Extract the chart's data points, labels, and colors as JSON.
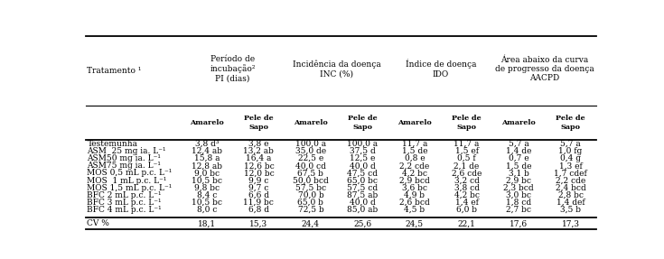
{
  "col_groups": [
    {
      "label": "Período de\nincubação²\nPI (dias)"
    },
    {
      "label": "Incidência da doença\nINC (%)"
    },
    {
      "label": "Índice de doença\nIDO"
    },
    {
      "label": "Área abaixo da curva\nde progresso da doença\nAACPD"
    }
  ],
  "col1_header": "Tratamento ¹",
  "sub_headers": [
    "Amarelo",
    "Pele de\nSapo"
  ],
  "rows": [
    [
      "Testemunha",
      "3,8 d³",
      "3,8 e",
      "100,0 a",
      "100,0 a",
      "11,7 a",
      "11,7 a",
      "5,7 a",
      "5,7 a"
    ],
    [
      "ASM  25 mg ia. L⁻¹",
      "12,4 ab",
      "13,2 ab",
      "35,0 de",
      "37,5 d",
      "1,5 de",
      "1,5 ef",
      "1,4 de",
      "1,0 fg"
    ],
    [
      "ASM50 mg ia. L⁻¹",
      "15,8 a",
      "16,4 a",
      "22,5 e",
      "12,5 e",
      "0,8 e",
      "0,5 f",
      "0,7 e",
      "0,4 g"
    ],
    [
      "ASM75 mg ia. L⁻¹",
      "12,8 ab",
      "12,6 bc",
      "40,0 cd",
      "40,0 d",
      "2,2 cde",
      "2,1 de",
      "1,5 de",
      "1,3 ef"
    ],
    [
      "MOS 0,5 mL p.c. L⁻¹",
      "9,0 bc",
      "12,0 bc",
      "67,5 b",
      "47,5 cd",
      "4,2 bc",
      "2,6 cde",
      "3,1 b",
      "1,7 cdef"
    ],
    [
      "MOS  1 mL p.c. L⁻¹",
      "10,5 bc",
      "9,9 c",
      "50,0 bcd",
      "65,0 bc",
      "2,9 bcd",
      "3,2 cd",
      "2,9 bc",
      "2,2 cde"
    ],
    [
      "MOS 1,5 mL p.c. L⁻¹",
      "9,8 bc",
      "9,7 c",
      "57,5 bc",
      "57,5 cd",
      "3,6 bc",
      "3,8 cd",
      "2,3 bcd",
      "2,4 bcd"
    ],
    [
      "BFC 2 mL p.c. L⁻¹",
      "8,4 c",
      "6,6 d",
      "70,0 b",
      "87,5 ab",
      "4,9 b",
      "4,2 bc",
      "3,0 bc",
      "2,8 bc"
    ],
    [
      "BFC 3 mL p.c. L⁻¹",
      "10,5 bc",
      "11,9 bc",
      "65,0 b",
      "40,0 d",
      "2,6 bcd",
      "1,4 ef",
      "1,8 cd",
      "1,4 def"
    ],
    [
      "BFC 4 mL p.c. L⁻¹",
      "8,0 c",
      "6,8 d",
      "72,5 b",
      "85,0 ab",
      "4,5 b",
      "6,0 b",
      "2,7 bc",
      "3,5 b"
    ]
  ],
  "cv_row": [
    "CV %",
    "18,1",
    "15,3",
    "24,4",
    "25,6",
    "24,5",
    "22,1",
    "17,6",
    "17,3"
  ],
  "font_size": 6.5,
  "header_font_size": 6.8,
  "bg_color": "white",
  "text_color": "black"
}
